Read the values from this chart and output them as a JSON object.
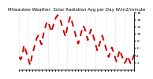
{
  "title": "Milwaukee Weather  Solar Radiation Avg per Day W/m2/minute",
  "line_color": "#cc0000",
  "bg_color": "#ffffff",
  "plot_bg": "#ffffff",
  "grid_color": "#bbbbbb",
  "y_values": [
    3.5,
    2.8,
    4.2,
    6.8,
    5.5,
    4.0,
    2.5,
    1.2,
    3.8,
    5.5,
    7.2,
    8.8,
    9.5,
    8.2,
    7.0,
    9.5,
    11.2,
    12.8,
    13.5,
    12.2,
    10.5,
    11.8,
    13.2,
    14.5,
    15.2,
    14.8,
    13.5,
    12.0,
    10.5,
    9.2,
    11.5,
    13.2,
    14.8,
    13.5,
    11.8,
    10.2,
    8.5,
    7.2,
    8.8,
    10.5,
    12.2,
    11.5,
    10.0,
    8.2,
    9.8,
    11.2,
    10.0,
    8.5,
    6.8,
    5.2,
    6.5,
    8.2,
    9.5,
    8.0,
    6.5,
    5.0,
    3.5,
    4.8,
    6.2,
    5.0,
    3.5,
    2.2,
    3.8,
    5.5,
    4.2,
    3.0,
    1.8,
    2.5,
    3.8,
    2.5,
    1.5,
    2.8,
    4.2
  ],
  "ylim": [
    0,
    16
  ],
  "ytick_values": [
    2,
    4,
    6,
    8,
    10,
    12,
    14,
    16
  ],
  "ytick_labels": [
    "2",
    "4",
    "6",
    "8",
    "10",
    "12",
    "14",
    "16"
  ],
  "n_vgrid": 13,
  "title_fontsize": 4.0,
  "tick_fontsize": 3.2,
  "linewidth": 1.4,
  "dash_on": 4,
  "dash_off": 3
}
